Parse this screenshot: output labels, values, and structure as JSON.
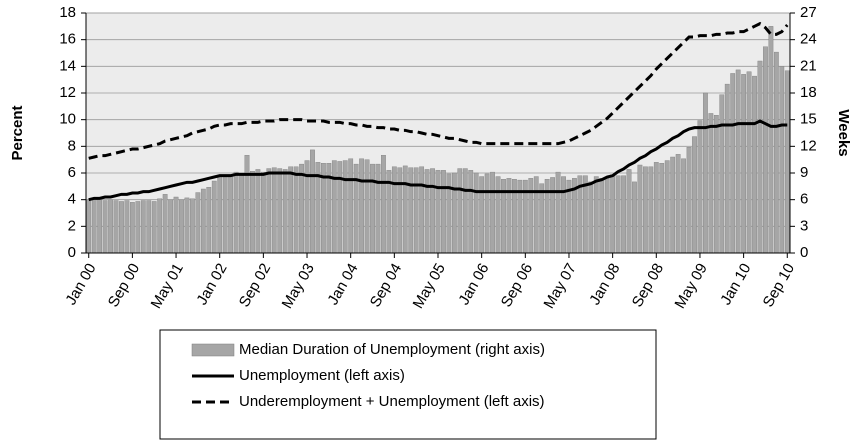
{
  "chart_data": {
    "type": "bar",
    "ylabel": "Percent",
    "y2label": "Weeks",
    "ylim": [
      0,
      18
    ],
    "yticks": [
      0,
      2,
      4,
      6,
      8,
      10,
      12,
      14,
      16,
      18
    ],
    "y2lim": [
      0,
      27
    ],
    "y2ticks": [
      0,
      3,
      6,
      9,
      12,
      15,
      18,
      21,
      24,
      27
    ],
    "grid": true,
    "legend": "bottom",
    "categories": [
      "Jan 00",
      null,
      null,
      null,
      null,
      null,
      null,
      null,
      "Sep 00",
      null,
      null,
      null,
      null,
      null,
      null,
      null,
      "May 01",
      null,
      null,
      null,
      null,
      null,
      null,
      null,
      "Jan 02",
      null,
      null,
      null,
      null,
      null,
      null,
      null,
      "Sep 02",
      null,
      null,
      null,
      null,
      null,
      null,
      null,
      "May 03",
      null,
      null,
      null,
      null,
      null,
      null,
      null,
      "Jan 04",
      null,
      null,
      null,
      null,
      null,
      null,
      null,
      "Sep 04",
      null,
      null,
      null,
      null,
      null,
      null,
      null,
      "May 05",
      null,
      null,
      null,
      null,
      null,
      null,
      null,
      "Jan 06",
      null,
      null,
      null,
      null,
      null,
      null,
      null,
      "Sep 06",
      null,
      null,
      null,
      null,
      null,
      null,
      null,
      "May 07",
      null,
      null,
      null,
      null,
      null,
      null,
      null,
      "Jan 08",
      null,
      null,
      null,
      null,
      null,
      null,
      null,
      "Sep 08",
      null,
      null,
      null,
      null,
      null,
      null,
      null,
      "May 09",
      null,
      null,
      null,
      null,
      null,
      null,
      null,
      "Jan 10",
      null,
      null,
      null,
      null,
      null,
      null,
      null,
      "Sep 10"
    ],
    "series": [
      {
        "name": "Median Duration of Unemployment (right axis)",
        "type": "bar",
        "axis": "y2",
        "color": "#a6a6a6",
        "values": [
          6.0,
          6.1,
          6.1,
          5.9,
          6.0,
          5.9,
          5.8,
          5.9,
          5.7,
          5.8,
          5.9,
          5.9,
          5.8,
          6.1,
          6.6,
          6.0,
          6.3,
          6.0,
          6.2,
          6.1,
          6.8,
          7.2,
          7.4,
          8.1,
          8.6,
          8.8,
          8.8,
          9.1,
          8.8,
          11.0,
          9.2,
          9.4,
          9.1,
          9.5,
          9.6,
          9.5,
          9.4,
          9.7,
          9.7,
          10.0,
          10.4,
          11.6,
          10.2,
          10.1,
          10.1,
          10.4,
          10.3,
          10.4,
          10.6,
          10.0,
          10.6,
          10.5,
          10.0,
          10.0,
          11.0,
          9.3,
          9.7,
          9.6,
          9.8,
          9.6,
          9.6,
          9.7,
          9.4,
          9.5,
          9.3,
          9.3,
          8.9,
          9.0,
          9.5,
          9.5,
          9.3,
          9.0,
          8.6,
          8.9,
          9.1,
          8.6,
          8.3,
          8.4,
          8.3,
          8.2,
          8.2,
          8.4,
          8.6,
          7.8,
          8.3,
          8.5,
          9.1,
          8.6,
          8.2,
          8.4,
          8.7,
          8.7,
          8.0,
          8.6,
          8.4,
          8.4,
          8.8,
          8.7,
          8.7,
          9.4,
          8.0,
          9.9,
          9.7,
          9.7,
          10.2,
          10.1,
          10.4,
          10.8,
          11.1,
          10.6,
          11.9,
          13.1,
          14.9,
          18.0,
          15.7,
          15.5,
          17.8,
          19.0,
          20.2,
          20.6,
          20.1,
          20.4,
          19.9,
          21.6,
          23.2,
          25.5,
          22.6,
          21.0,
          20.5
        ]
      },
      {
        "name": "Unemployment (left axis)",
        "type": "line",
        "color": "#000000",
        "dash": false,
        "values": [
          4.0,
          4.1,
          4.1,
          4.2,
          4.2,
          4.3,
          4.4,
          4.4,
          4.5,
          4.5,
          4.6,
          4.6,
          4.7,
          4.8,
          4.9,
          5.0,
          5.1,
          5.2,
          5.3,
          5.3,
          5.4,
          5.5,
          5.6,
          5.7,
          5.8,
          5.8,
          5.8,
          5.9,
          5.9,
          5.9,
          5.9,
          5.9,
          5.9,
          6.0,
          6.0,
          6.0,
          6.0,
          6.0,
          5.9,
          5.9,
          5.8,
          5.8,
          5.8,
          5.7,
          5.7,
          5.6,
          5.6,
          5.5,
          5.5,
          5.5,
          5.4,
          5.4,
          5.4,
          5.3,
          5.3,
          5.3,
          5.2,
          5.2,
          5.2,
          5.1,
          5.1,
          5.1,
          5.0,
          5.0,
          4.9,
          4.9,
          4.9,
          4.8,
          4.8,
          4.7,
          4.7,
          4.6,
          4.6,
          4.6,
          4.6,
          4.6,
          4.6,
          4.6,
          4.6,
          4.6,
          4.6,
          4.6,
          4.6,
          4.6,
          4.6,
          4.6,
          4.6,
          4.6,
          4.7,
          4.8,
          5.0,
          5.1,
          5.2,
          5.4,
          5.5,
          5.7,
          5.8,
          6.1,
          6.3,
          6.6,
          6.8,
          7.1,
          7.3,
          7.6,
          7.8,
          8.1,
          8.3,
          8.6,
          8.8,
          9.1,
          9.3,
          9.4,
          9.4,
          9.4,
          9.5,
          9.5,
          9.6,
          9.6,
          9.6,
          9.7,
          9.7,
          9.7,
          9.7,
          9.9,
          9.7,
          9.5,
          9.5,
          9.6,
          9.6
        ]
      },
      {
        "name": "Underemployment + Unemployment (left axis)",
        "type": "line",
        "color": "#000000",
        "dash": true,
        "values": [
          7.1,
          7.2,
          7.3,
          7.3,
          7.4,
          7.5,
          7.6,
          7.7,
          7.8,
          7.8,
          7.9,
          8.0,
          8.1,
          8.2,
          8.4,
          8.5,
          8.6,
          8.7,
          8.8,
          9.0,
          9.1,
          9.2,
          9.3,
          9.5,
          9.6,
          9.6,
          9.7,
          9.7,
          9.7,
          9.8,
          9.8,
          9.8,
          9.9,
          9.9,
          9.9,
          10.0,
          10.0,
          10.0,
          10.0,
          10.0,
          9.9,
          9.9,
          9.9,
          9.9,
          9.8,
          9.8,
          9.8,
          9.7,
          9.7,
          9.6,
          9.6,
          9.5,
          9.5,
          9.4,
          9.4,
          9.3,
          9.3,
          9.2,
          9.2,
          9.1,
          9.1,
          9.0,
          8.9,
          8.9,
          8.8,
          8.7,
          8.6,
          8.6,
          8.5,
          8.4,
          8.3,
          8.3,
          8.2,
          8.2,
          8.2,
          8.2,
          8.2,
          8.2,
          8.2,
          8.2,
          8.2,
          8.2,
          8.2,
          8.2,
          8.2,
          8.2,
          8.2,
          8.3,
          8.4,
          8.6,
          8.8,
          9.0,
          9.2,
          9.5,
          9.8,
          10.1,
          10.5,
          10.9,
          11.3,
          11.7,
          12.1,
          12.5,
          12.9,
          13.3,
          13.8,
          14.2,
          14.6,
          15.0,
          15.4,
          15.8,
          16.2,
          16.2,
          16.3,
          16.3,
          16.3,
          16.4,
          16.4,
          16.5,
          16.5,
          16.6,
          16.6,
          16.8,
          17.0,
          17.2,
          16.9,
          16.4,
          16.4,
          16.6,
          17.1
        ]
      }
    ]
  }
}
